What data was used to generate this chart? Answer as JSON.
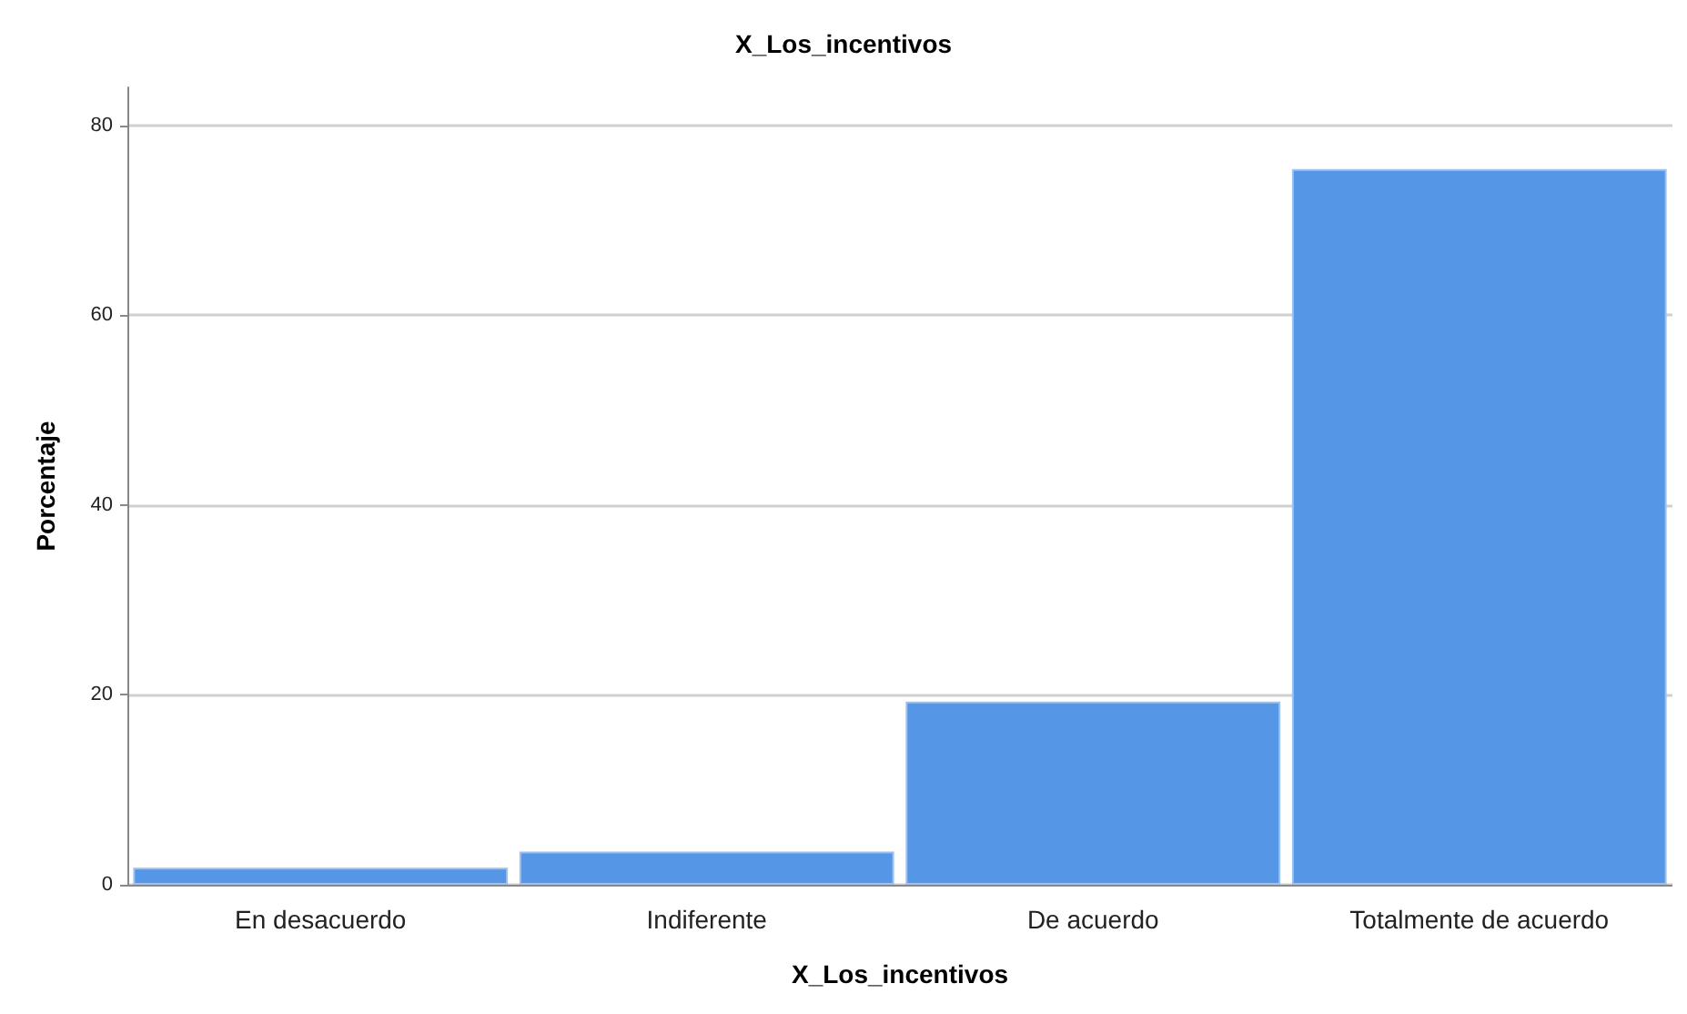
{
  "chart_data": {
    "type": "bar",
    "title": "X_Los_incentivos",
    "xlabel": "X_Los_incentivos",
    "ylabel": "Porcentaje",
    "categories": [
      "En desacuerdo",
      "Indiferente",
      "De acuerdo",
      "Totalmente de acuerdo"
    ],
    "values": [
      1.8,
      3.5,
      19.3,
      75.4
    ],
    "color": "#5596e6",
    "ylim": [
      0,
      84
    ],
    "yticks": [
      0,
      20,
      40,
      60,
      80
    ],
    "grid": "y"
  }
}
